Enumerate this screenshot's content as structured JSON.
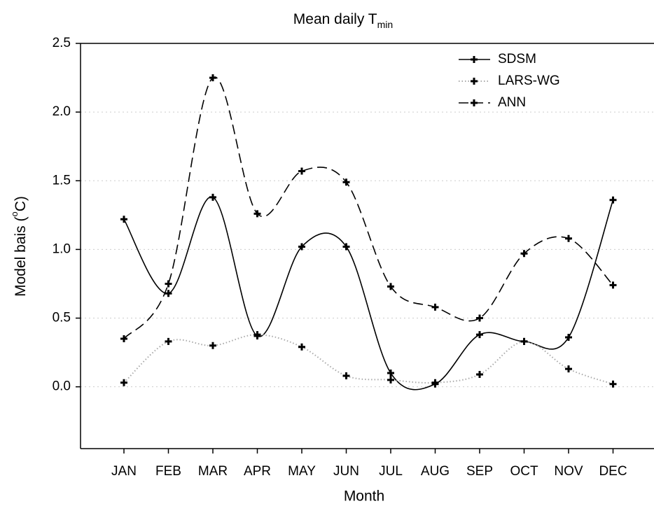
{
  "chart_data": {
    "type": "line",
    "title": "Mean daily T",
    "title_subscript": "min",
    "x_label": "Month",
    "y_label": "Model bais (",
    "y_label_superscript": "o",
    "y_label_end": "C)",
    "categories": [
      "JAN",
      "FEB",
      "MAR",
      "APR",
      "MAY",
      "JUN",
      "JUL",
      "AUG",
      "SEP",
      "OCT",
      "NOV",
      "DEC"
    ],
    "series": [
      {
        "name": "SDSM",
        "color": "#000000",
        "line_style": "solid",
        "values": [
          1.22,
          0.68,
          1.38,
          0.37,
          1.02,
          1.02,
          0.1,
          0.02,
          0.38,
          0.33,
          0.36,
          1.36
        ]
      },
      {
        "name": "LARS-WG",
        "color": "#aaaaaa",
        "line_style": "dotted",
        "values": [
          0.03,
          0.33,
          0.3,
          0.38,
          0.29,
          0.08,
          0.05,
          0.03,
          0.09,
          0.33,
          0.13,
          0.02
        ]
      },
      {
        "name": "ANN",
        "color": "#000000",
        "line_style": "dashed",
        "values": [
          0.35,
          0.75,
          2.25,
          1.26,
          1.57,
          1.49,
          0.73,
          0.58,
          0.5,
          0.97,
          1.08,
          0.74
        ]
      }
    ],
    "ylim": [
      -0.45,
      2.5
    ],
    "yticks": [
      {
        "value": 0,
        "label": "0.0"
      },
      {
        "value": 0.5,
        "label": "0.5"
      },
      {
        "value": 1,
        "label": "1.0"
      },
      {
        "value": 1.5,
        "label": "1.5"
      },
      {
        "value": 2,
        "label": "2.0"
      },
      {
        "value": 2.5,
        "label": "2.5"
      }
    ],
    "grid": true,
    "smooth": true,
    "legend": "upper right"
  }
}
